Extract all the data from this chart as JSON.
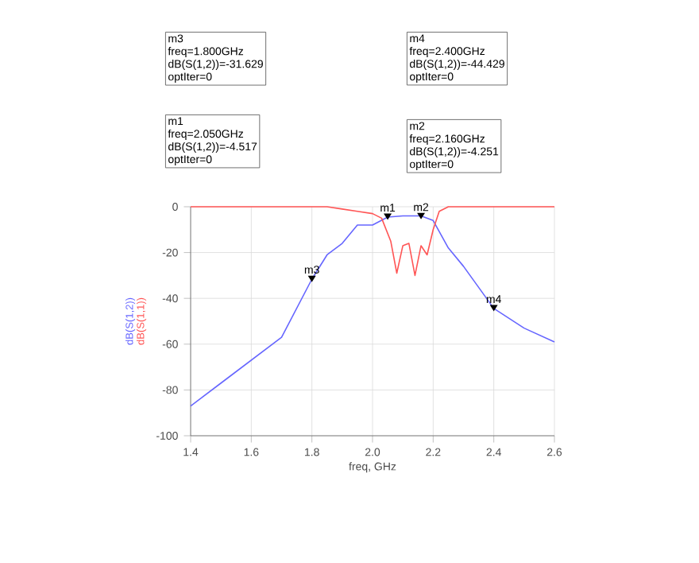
{
  "chart_data": {
    "type": "line",
    "xlabel": "freq, GHz",
    "xlim": [
      1.4,
      2.6
    ],
    "xticks": [
      1.4,
      1.6,
      1.8,
      {
        "value": 2,
        "label": "2.0"
      },
      2.2,
      2.4,
      2.6
    ],
    "ylim": [
      -100,
      0
    ],
    "yticks": [
      -100,
      -80,
      -60,
      -40,
      -20,
      0
    ],
    "grid": true,
    "legend": "left",
    "series": [
      {
        "name": "dB(S(1,2))",
        "color": "#6666ff",
        "x": [
          1.4,
          1.5,
          1.6,
          1.7,
          1.8,
          1.85,
          1.9,
          1.95,
          2.0,
          2.05,
          2.1,
          2.16,
          2.2,
          2.25,
          2.3,
          2.4,
          2.5,
          2.6
        ],
        "values": [
          -87,
          -77,
          -67,
          -57,
          -31.6,
          -21,
          -16,
          -8,
          -8,
          -4.5,
          -4,
          -4,
          -6,
          -18,
          -26,
          -44.4,
          -53,
          -59
        ]
      },
      {
        "name": "dB(S(1,1))",
        "color": "#ff5555",
        "x": [
          1.4,
          1.85,
          1.9,
          1.95,
          2.0,
          2.03,
          2.06,
          2.08,
          2.1,
          2.12,
          2.14,
          2.16,
          2.18,
          2.2,
          2.22,
          2.25,
          2.3,
          2.6
        ],
        "values": [
          0,
          0,
          -1,
          -2,
          -3,
          -5,
          -15,
          -29,
          -17,
          -16,
          -30,
          -17,
          -21,
          -10,
          -2,
          0,
          0,
          0
        ]
      }
    ],
    "annotations": [
      {
        "text": "m3",
        "x": 1.8,
        "y": -31.629
      },
      {
        "text": "m1",
        "x": 2.05,
        "y": -4.517
      },
      {
        "text": "m2",
        "x": 2.16,
        "y": -4.251
      },
      {
        "text": "m4",
        "x": 2.4,
        "y": -44.429
      },
      "m3",
      "freq=1.800GHz",
      "dB(S(1,2))=-31.629",
      "optIter=0",
      "m4",
      "freq=2.400GHz",
      "dB(S(1,2))=-44.429",
      "optIter=0",
      "m1",
      "freq=2.050GHz",
      "dB(S(1,2))=-4.517",
      "optIter=0",
      "m2",
      "freq=2.160GHz",
      "dB(S(1,2))=-4.251",
      "optIter=0"
    ]
  }
}
